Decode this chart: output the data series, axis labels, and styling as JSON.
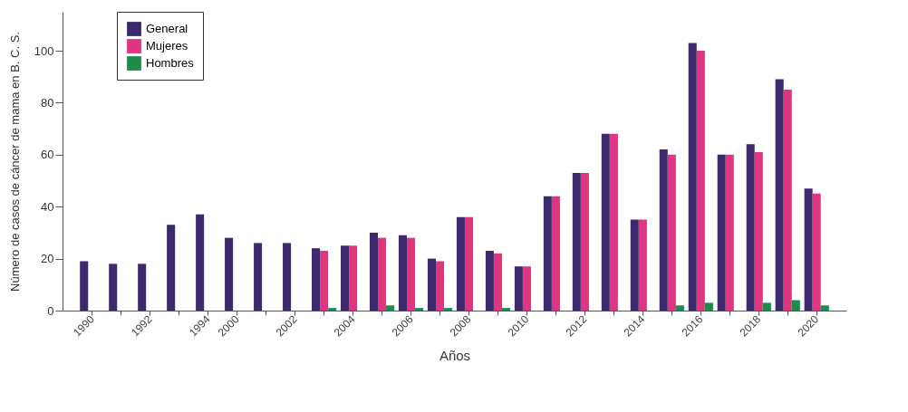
{
  "chart_data": {
    "type": "bar",
    "xlabel": "Años",
    "ylabel": "Número de casos de cáncer de mama en B. C. S.",
    "categories": [
      "1990",
      null,
      "1992",
      null,
      "1994",
      "2000",
      null,
      "2002",
      null,
      "2004",
      null,
      "2006",
      null,
      "2008",
      null,
      "2010",
      null,
      "2012",
      null,
      "2014",
      null,
      "2016",
      null,
      "2018",
      null,
      "2020"
    ],
    "series": [
      {
        "name": "General",
        "color": "#3d2a6e",
        "values": [
          19,
          18,
          18,
          33,
          37,
          28,
          26,
          26,
          24,
          25,
          30,
          29,
          20,
          36,
          23,
          17,
          44,
          53,
          68,
          35,
          62,
          103,
          60,
          64,
          89,
          47
        ]
      },
      {
        "name": "Mujeres",
        "color": "#e0357f",
        "values": [
          null,
          null,
          null,
          null,
          null,
          null,
          null,
          null,
          23,
          25,
          28,
          28,
          19,
          36,
          22,
          17,
          44,
          53,
          68,
          35,
          60,
          100,
          60,
          61,
          85,
          45
        ]
      },
      {
        "name": "Hombres",
        "color": "#1e8a4c",
        "values": [
          null,
          null,
          null,
          null,
          null,
          null,
          null,
          null,
          1,
          null,
          2,
          1,
          1,
          null,
          1,
          null,
          null,
          null,
          null,
          null,
          2,
          3,
          null,
          3,
          4,
          2
        ]
      }
    ],
    "ylim": [
      0,
      115
    ],
    "yticks": [
      0,
      20,
      40,
      60,
      80,
      100
    ],
    "grid": false,
    "legend": "top left"
  }
}
